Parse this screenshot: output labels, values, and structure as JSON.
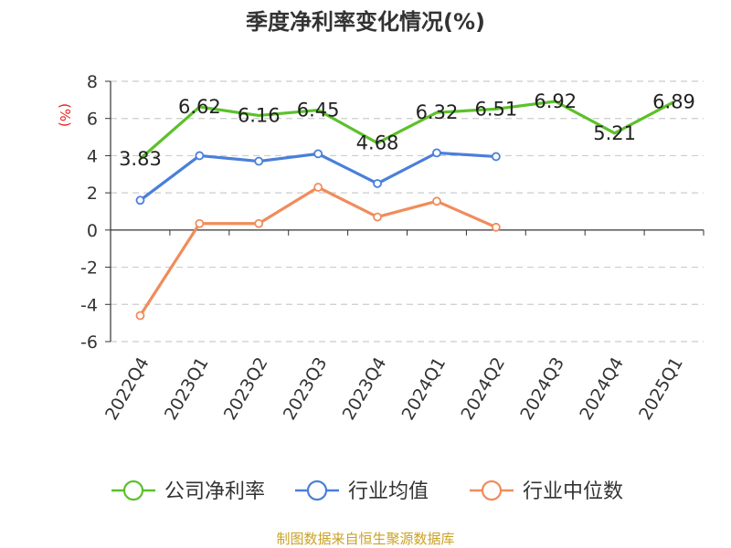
{
  "chart_data": {
    "type": "line",
    "title": "季度净利率变化情况(%)",
    "ylabel": "(%)",
    "xlabel": "",
    "categories": [
      "2022Q4",
      "2023Q1",
      "2023Q2",
      "2023Q3",
      "2023Q4",
      "2024Q1",
      "2024Q2",
      "2024Q3",
      "2024Q4",
      "2025Q1"
    ],
    "y_ticks": [
      "8",
      "6",
      "4",
      "2",
      "0",
      "-2",
      "-4",
      "-6"
    ],
    "ylim": [
      -6,
      8
    ],
    "grid": "horizontal dashed",
    "legend_position": "bottom",
    "series": [
      {
        "name": "公司净利率",
        "color": "#5cc12a",
        "values": [
          3.83,
          6.62,
          6.16,
          6.45,
          4.68,
          6.32,
          6.51,
          6.92,
          5.21,
          6.89
        ],
        "labels": [
          "3.83",
          "6.62",
          "6.16",
          "6.45",
          "4.68",
          "6.32",
          "6.51",
          "6.92",
          "5.21",
          "6.89"
        ]
      },
      {
        "name": "行业均值",
        "color": "#4a7fdb",
        "values": [
          1.6,
          4.0,
          3.7,
          4.1,
          2.5,
          4.15,
          3.95,
          null,
          null,
          null
        ]
      },
      {
        "name": "行业中位数",
        "color": "#f08c5a",
        "values": [
          -4.6,
          0.35,
          0.35,
          2.3,
          0.7,
          1.55,
          0.15,
          null,
          null,
          null
        ]
      }
    ]
  },
  "source_text": "制图数据来自恒生聚源数据库",
  "colors": {
    "unit_label": "#e8231f",
    "source": "#c9a227",
    "axis": "#333333",
    "grid": "#cccccc"
  }
}
